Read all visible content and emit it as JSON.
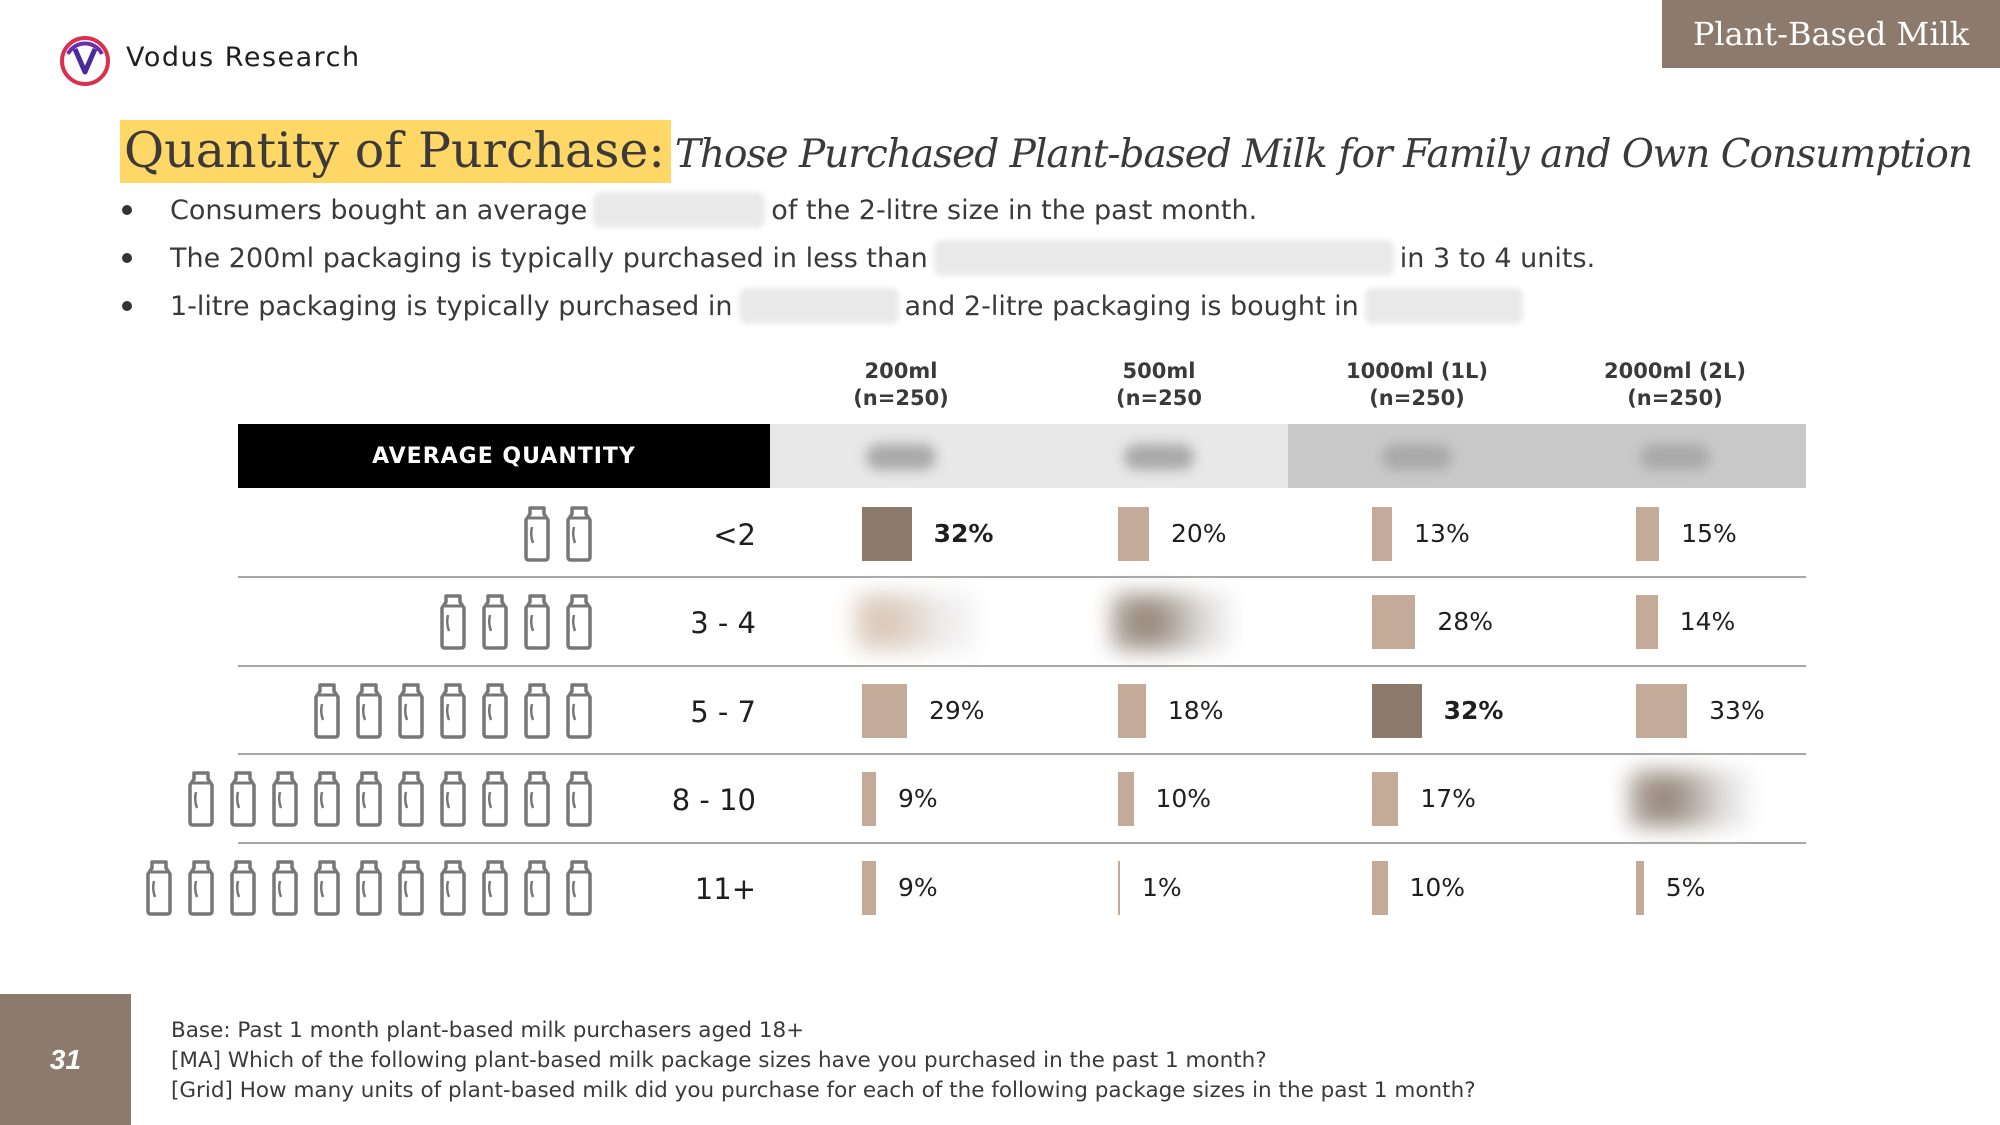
{
  "brand": "Vodus Research",
  "category_tag": "Plant-Based Milk",
  "title": {
    "main": "Quantity of Purchase:",
    "sub": "Those Purchased Plant-based Milk for Family and Own Consumption"
  },
  "bullets": [
    {
      "before": "Consumers bought an average",
      "after": "of the 2-litre size in the past month."
    },
    {
      "before": "The 200ml packaging is typically purchased in less than",
      "after": "in 3 to 4 units."
    },
    {
      "before": "1-litre packaging is typically purchased in",
      "middle": "and 2-litre packaging is bought in",
      "after": ""
    }
  ],
  "average_label": "AVERAGE QUANTITY",
  "colors": {
    "bar": "#c4aa98",
    "bar_highlight": "#8c7b6c",
    "tag_bg": "#8c7b6c",
    "title_highlight": "#ffd766",
    "band_light": "#e8e8e8",
    "band_dark": "#c9c9c9"
  },
  "icons": [
    "logo-icon",
    "milk-bottle-icon"
  ],
  "chart_data": {
    "type": "table",
    "columns": [
      {
        "size": "200ml",
        "base": "(n=250)"
      },
      {
        "size": "500ml",
        "base": "(n=250"
      },
      {
        "size": "1000ml (1L)",
        "base": "(n=250)"
      },
      {
        "size": "2000ml (2L)",
        "base": "(n=250)"
      }
    ],
    "rows": [
      {
        "label": "<2",
        "bottles": 2,
        "values": [
          32,
          20,
          13,
          15
        ],
        "labels": [
          "32%",
          "20%",
          "13%",
          "15%"
        ],
        "highlight": [
          true,
          false,
          false,
          false
        ],
        "hidden": [
          false,
          false,
          false,
          false
        ]
      },
      {
        "label": "3 - 4",
        "bottles": 4,
        "values": [
          null,
          null,
          28,
          14
        ],
        "labels": [
          "",
          "",
          "28%",
          "14%"
        ],
        "highlight": [
          false,
          false,
          false,
          false
        ],
        "hidden": [
          true,
          true,
          false,
          false
        ]
      },
      {
        "label": "5 - 7",
        "bottles": 7,
        "values": [
          29,
          18,
          32,
          33
        ],
        "labels": [
          "29%",
          "18%",
          "32%",
          "33%"
        ],
        "highlight": [
          false,
          false,
          true,
          false
        ],
        "hidden": [
          false,
          false,
          false,
          false
        ]
      },
      {
        "label": "8 - 10",
        "bottles": 10,
        "values": [
          9,
          10,
          17,
          null
        ],
        "labels": [
          "9%",
          "10%",
          "17%",
          ""
        ],
        "highlight": [
          false,
          false,
          false,
          false
        ],
        "hidden": [
          false,
          false,
          false,
          true
        ]
      },
      {
        "label": "11+",
        "bottles": 11,
        "values": [
          9,
          1,
          10,
          5
        ],
        "labels": [
          "9%",
          "1%",
          "10%",
          "5%"
        ],
        "highlight": [
          false,
          false,
          false,
          false
        ],
        "hidden": [
          false,
          false,
          false,
          false
        ]
      }
    ]
  },
  "page_number": "31",
  "footnotes": [
    "Base: Past 1 month plant-based milk purchasers aged 18+",
    "[MA] Which of the following plant-based milk package sizes have you purchased in the past 1 month?",
    "[Grid] How many units of plant-based milk did you purchase for each of the following package sizes in the past 1 month?"
  ]
}
